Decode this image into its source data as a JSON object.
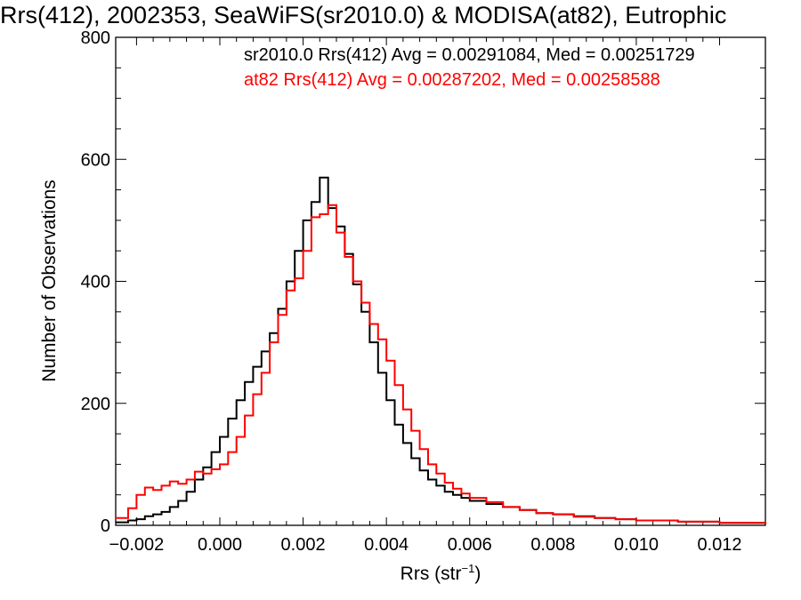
{
  "chart_data": {
    "type": "line",
    "title": "Rrs(412), 2002353, SeaWiFS(sr2010.0) & MODISA(at82), Eutrophic",
    "xlabel": "Rrs (str",
    "xlabel_sup": "−1",
    "xlabel_end": ")",
    "ylabel": "Number of Observations",
    "xlim": [
      -0.0025,
      0.0131
    ],
    "ylim": [
      0,
      800
    ],
    "xticks": [
      -0.002,
      0.0,
      0.002,
      0.004,
      0.006,
      0.008,
      0.01,
      0.012
    ],
    "xtick_labels": [
      "−0.002",
      "0.000",
      "0.002",
      "0.004",
      "0.006",
      "0.008",
      "0.010",
      "0.012"
    ],
    "yticks": [
      0,
      200,
      400,
      600,
      800
    ],
    "ytick_labels": [
      "0",
      "200",
      "400",
      "600",
      "800"
    ],
    "grid": false,
    "legend_placement": "top",
    "series": [
      {
        "label": "sr2010.0 Rrs(412) Avg = 0.00291084, Med = 0.00251729",
        "color": "#000000",
        "points": [
          [
            -0.0025,
            5
          ],
          [
            -0.0022,
            8
          ],
          [
            -0.002,
            10
          ],
          [
            -0.0018,
            15
          ],
          [
            -0.0016,
            18
          ],
          [
            -0.0014,
            22
          ],
          [
            -0.0012,
            30
          ],
          [
            -0.001,
            40
          ],
          [
            -0.0008,
            55
          ],
          [
            -0.0006,
            75
          ],
          [
            -0.0004,
            95
          ],
          [
            -0.0002,
            120
          ],
          [
            0.0,
            145
          ],
          [
            0.0002,
            175
          ],
          [
            0.0004,
            205
          ],
          [
            0.0006,
            235
          ],
          [
            0.0008,
            260
          ],
          [
            0.001,
            285
          ],
          [
            0.0012,
            315
          ],
          [
            0.0014,
            355
          ],
          [
            0.0016,
            400
          ],
          [
            0.0018,
            450
          ],
          [
            0.002,
            500
          ],
          [
            0.0022,
            530
          ],
          [
            0.0024,
            570
          ],
          [
            0.0026,
            520
          ],
          [
            0.0028,
            490
          ],
          [
            0.003,
            445
          ],
          [
            0.0032,
            395
          ],
          [
            0.0034,
            350
          ],
          [
            0.0036,
            300
          ],
          [
            0.0038,
            250
          ],
          [
            0.004,
            205
          ],
          [
            0.0042,
            165
          ],
          [
            0.0044,
            135
          ],
          [
            0.0046,
            110
          ],
          [
            0.0048,
            90
          ],
          [
            0.005,
            75
          ],
          [
            0.0052,
            65
          ],
          [
            0.0054,
            55
          ],
          [
            0.0056,
            50
          ],
          [
            0.0058,
            45
          ],
          [
            0.006,
            40
          ],
          [
            0.0064,
            35
          ],
          [
            0.0068,
            30
          ],
          [
            0.0072,
            25
          ],
          [
            0.0076,
            20
          ],
          [
            0.008,
            18
          ],
          [
            0.0085,
            15
          ],
          [
            0.009,
            12
          ],
          [
            0.0095,
            10
          ],
          [
            0.01,
            8
          ],
          [
            0.011,
            6
          ],
          [
            0.012,
            4
          ],
          [
            0.0131,
            2
          ]
        ]
      },
      {
        "label": "at82 Rrs(412) Avg = 0.00287202, Med = 0.00258588",
        "color": "#ff0000",
        "points": [
          [
            -0.0025,
            12
          ],
          [
            -0.0022,
            28
          ],
          [
            -0.002,
            50
          ],
          [
            -0.0018,
            62
          ],
          [
            -0.0016,
            58
          ],
          [
            -0.0014,
            65
          ],
          [
            -0.0012,
            72
          ],
          [
            -0.001,
            68
          ],
          [
            -0.0008,
            75
          ],
          [
            -0.0006,
            88
          ],
          [
            -0.0004,
            85
          ],
          [
            -0.0002,
            92
          ],
          [
            0.0,
            100
          ],
          [
            0.0002,
            120
          ],
          [
            0.0004,
            145
          ],
          [
            0.0006,
            180
          ],
          [
            0.0008,
            215
          ],
          [
            0.001,
            250
          ],
          [
            0.0012,
            300
          ],
          [
            0.0014,
            345
          ],
          [
            0.0016,
            385
          ],
          [
            0.0018,
            405
          ],
          [
            0.002,
            450
          ],
          [
            0.0022,
            505
          ],
          [
            0.0024,
            510
          ],
          [
            0.0026,
            525
          ],
          [
            0.0028,
            480
          ],
          [
            0.003,
            440
          ],
          [
            0.0032,
            400
          ],
          [
            0.0034,
            365
          ],
          [
            0.0036,
            330
          ],
          [
            0.0038,
            305
          ],
          [
            0.004,
            270
          ],
          [
            0.0042,
            230
          ],
          [
            0.0044,
            190
          ],
          [
            0.0046,
            155
          ],
          [
            0.0048,
            125
          ],
          [
            0.005,
            100
          ],
          [
            0.0052,
            85
          ],
          [
            0.0054,
            70
          ],
          [
            0.0056,
            60
          ],
          [
            0.0058,
            52
          ],
          [
            0.006,
            45
          ],
          [
            0.0064,
            38
          ],
          [
            0.0068,
            30
          ],
          [
            0.0072,
            25
          ],
          [
            0.0076,
            20
          ],
          [
            0.008,
            18
          ],
          [
            0.0085,
            14
          ],
          [
            0.009,
            12
          ],
          [
            0.0095,
            10
          ],
          [
            0.01,
            8
          ],
          [
            0.011,
            6
          ],
          [
            0.012,
            4
          ],
          [
            0.0131,
            2
          ]
        ]
      }
    ]
  }
}
